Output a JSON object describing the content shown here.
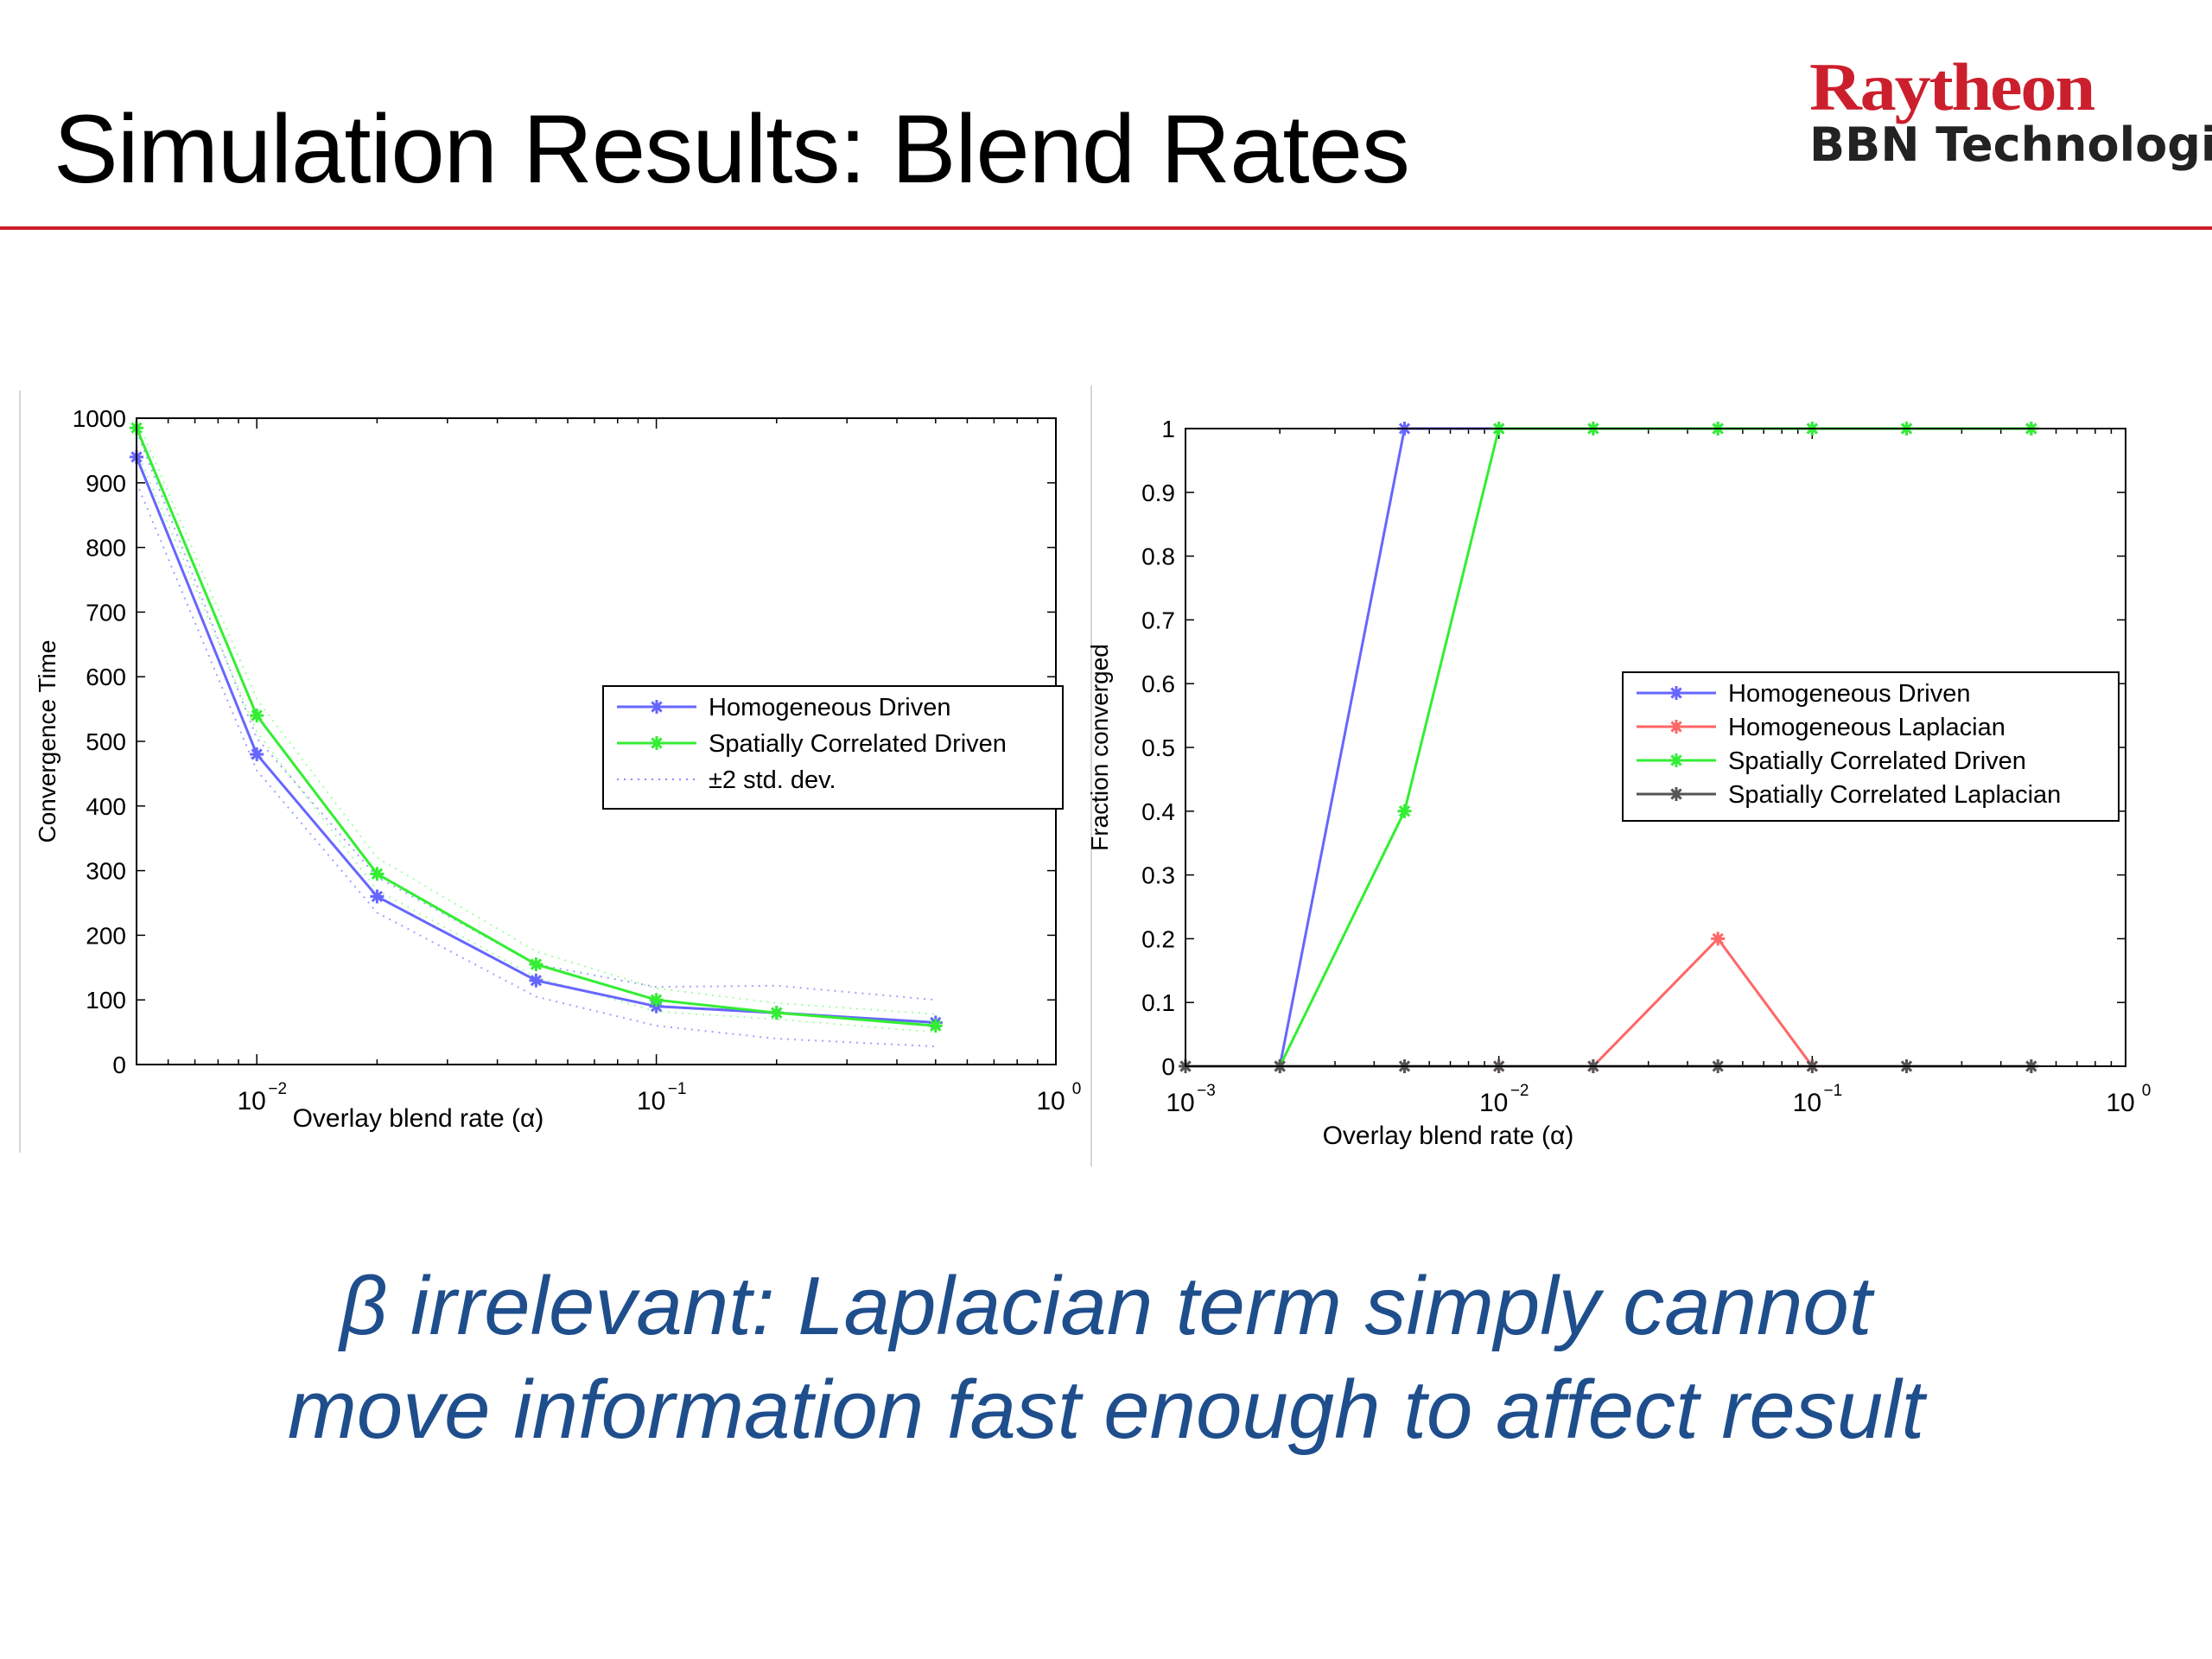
{
  "slide": {
    "title": "Simulation Results: Blend Rates",
    "logo_top": "Raytheon",
    "logo_bottom": "BBN Technologies",
    "caption_line1": "β irrelevant: Laplacian term simply cannot",
    "caption_line2": "move information fast enough to affect result",
    "colors": {
      "accent": "#cc1f2d",
      "caption": "#1f4e8c"
    }
  },
  "chart_data": [
    {
      "type": "line",
      "xlabel": "Overlay blend rate (α)",
      "ylabel": "Convergence Time",
      "xscale": "log",
      "xlim": [
        0.005,
        1
      ],
      "ylim": [
        0,
        1000
      ],
      "xticks": [
        {
          "value": 0.01,
          "base": "10",
          "exp": "−2"
        },
        {
          "value": 0.1,
          "base": "10",
          "exp": "−1"
        },
        {
          "value": 1,
          "base": "10",
          "exp": "0"
        }
      ],
      "yticks": [
        0,
        100,
        200,
        300,
        400,
        500,
        600,
        700,
        800,
        900,
        1000
      ],
      "legend": "center-right",
      "series": [
        {
          "name": "Homogeneous Driven",
          "color": "#6666ff",
          "marker": "asterisk",
          "x": [
            0.005,
            0.01,
            0.02,
            0.05,
            0.1,
            0.2,
            0.5
          ],
          "values": [
            940,
            480,
            260,
            130,
            90,
            80,
            65
          ]
        },
        {
          "name": "Spatially Correlated Driven",
          "color": "#33ee33",
          "marker": "asterisk",
          "x": [
            0.005,
            0.01,
            0.02,
            0.05,
            0.1,
            0.2,
            0.5
          ],
          "values": [
            985,
            540,
            295,
            155,
            100,
            80,
            60
          ]
        }
      ],
      "bands": [
        {
          "name": "±2 std. dev.",
          "color": "#8a8aff",
          "x": [
            0.005,
            0.01,
            0.02,
            0.05,
            0.1,
            0.2,
            0.5
          ],
          "values": [
            900,
            455,
            235,
            105,
            60,
            40,
            28
          ]
        },
        {
          "color": "#8a8aff",
          "x": [
            0.005,
            0.01,
            0.02,
            0.05,
            0.1,
            0.2,
            0.5
          ],
          "values": [
            980,
            505,
            290,
            155,
            120,
            122,
            100
          ]
        },
        {
          "color": "#8aff8a",
          "x": [
            0.005,
            0.01,
            0.02,
            0.05,
            0.1,
            0.2,
            0.5
          ],
          "values": [
            950,
            515,
            270,
            135,
            82,
            70,
            50
          ]
        },
        {
          "color": "#8aff8a",
          "x": [
            0.005,
            0.01,
            0.02,
            0.05,
            0.1,
            0.2,
            0.5
          ],
          "values": [
            1000,
            565,
            320,
            175,
            118,
            95,
            78
          ]
        }
      ]
    },
    {
      "type": "line",
      "xlabel": "Overlay blend rate (α)",
      "ylabel": "Fraction converged",
      "xscale": "log",
      "xlim": [
        0.001,
        1
      ],
      "ylim": [
        0,
        1
      ],
      "xticks": [
        {
          "value": 0.001,
          "base": "10",
          "exp": "−3"
        },
        {
          "value": 0.01,
          "base": "10",
          "exp": "−2"
        },
        {
          "value": 0.1,
          "base": "10",
          "exp": "−1"
        },
        {
          "value": 1,
          "base": "10",
          "exp": "0"
        }
      ],
      "yticks": [
        0,
        0.1,
        0.2,
        0.3,
        0.4,
        0.5,
        0.6,
        0.7,
        0.8,
        0.9,
        1
      ],
      "legend": "center-right",
      "series": [
        {
          "name": "Homogeneous Driven",
          "color": "#6666ff",
          "marker": "asterisk",
          "x": [
            0.001,
            0.002,
            0.005,
            0.01,
            0.02,
            0.05,
            0.1,
            0.2,
            0.5
          ],
          "values": [
            0,
            0,
            1,
            1,
            1,
            1,
            1,
            1,
            1
          ]
        },
        {
          "name": "Homogeneous Laplacian",
          "color": "#ff6666",
          "marker": "asterisk",
          "x": [
            0.001,
            0.002,
            0.005,
            0.01,
            0.02,
            0.05,
            0.1,
            0.2,
            0.5
          ],
          "values": [
            0,
            0,
            0,
            0,
            0,
            0.2,
            0,
            0,
            0
          ]
        },
        {
          "name": "Spatially Correlated Driven",
          "color": "#33ee33",
          "marker": "asterisk",
          "x": [
            0.001,
            0.002,
            0.005,
            0.01,
            0.02,
            0.05,
            0.1,
            0.2,
            0.5
          ],
          "values": [
            0,
            0,
            0.4,
            1,
            1,
            1,
            1,
            1,
            1
          ]
        },
        {
          "name": "Spatially Correlated Laplacian",
          "color": "#555555",
          "marker": "asterisk",
          "x": [
            0.001,
            0.002,
            0.005,
            0.01,
            0.02,
            0.05,
            0.1,
            0.2,
            0.5
          ],
          "values": [
            0,
            0,
            0,
            0,
            0,
            0,
            0,
            0,
            0
          ]
        }
      ]
    }
  ]
}
